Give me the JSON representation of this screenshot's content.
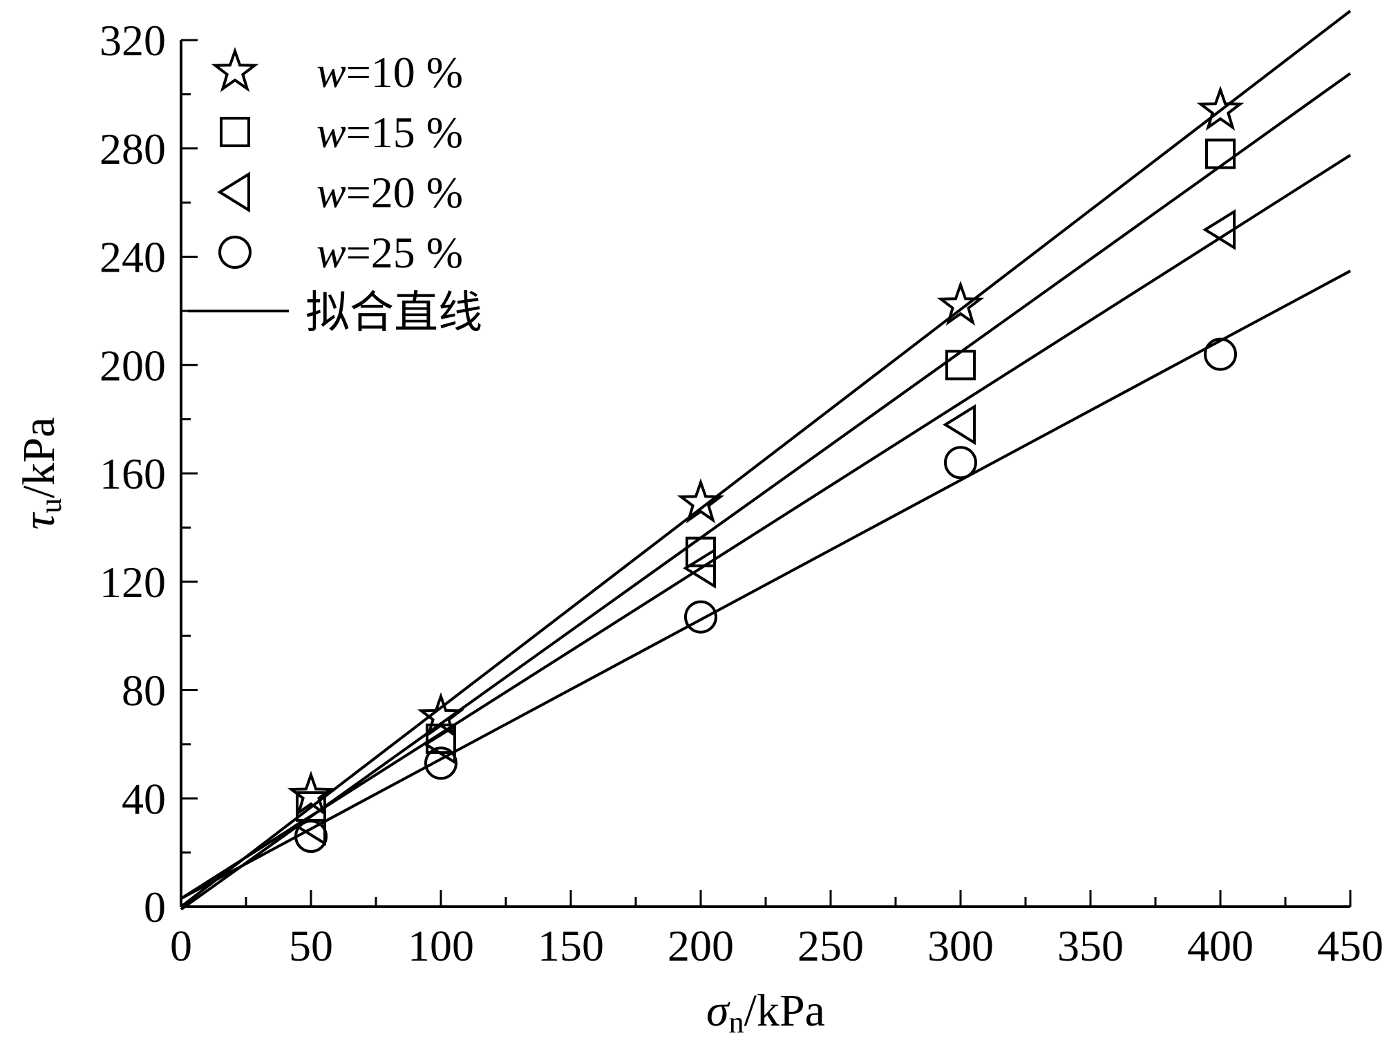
{
  "chart_data": {
    "type": "scatter",
    "xlabel": {
      "symbol": "σ",
      "subscript": "n",
      "unit": "/kPa"
    },
    "ylabel": {
      "symbol": "τ",
      "subscript": "u",
      "unit": "/kPa"
    },
    "xlim": [
      0,
      450
    ],
    "ylim": [
      0,
      320
    ],
    "xticks": [
      0,
      50,
      100,
      150,
      200,
      250,
      300,
      350,
      400,
      450
    ],
    "yticks": [
      0,
      40,
      80,
      120,
      160,
      200,
      240,
      280,
      320
    ],
    "x_minor_step": 25,
    "y_minor_step": 20,
    "grid": false,
    "legend_position": "top-left",
    "fit_line_label": "拟合直线",
    "series": [
      {
        "name_var": "w",
        "name_rest": "=10 %",
        "marker": "star",
        "x": [
          50,
          100,
          200,
          300,
          400
        ],
        "y": [
          41,
          70,
          149,
          222,
          294
        ],
        "fit": {
          "slope": 0.735,
          "intercept": 0
        }
      },
      {
        "name_var": "w",
        "name_rest": "=15 %",
        "marker": "square",
        "x": [
          50,
          100,
          200,
          300,
          400
        ],
        "y": [
          37,
          62,
          131,
          200,
          278
        ],
        "fit": {
          "slope": 0.686,
          "intercept": -1
        }
      },
      {
        "name_var": "w",
        "name_rest": "=20 %",
        "marker": "triangle-left",
        "x": [
          50,
          100,
          200,
          300,
          400
        ],
        "y": [
          30,
          60,
          125,
          178,
          250
        ],
        "fit": {
          "slope": 0.61,
          "intercept": 3
        }
      },
      {
        "name_var": "w",
        "name_rest": "=25 %",
        "marker": "circle",
        "x": [
          50,
          100,
          200,
          300,
          400
        ],
        "y": [
          26,
          53,
          107,
          164,
          204
        ],
        "fit": {
          "slope": 0.515,
          "intercept": 3
        }
      }
    ]
  }
}
